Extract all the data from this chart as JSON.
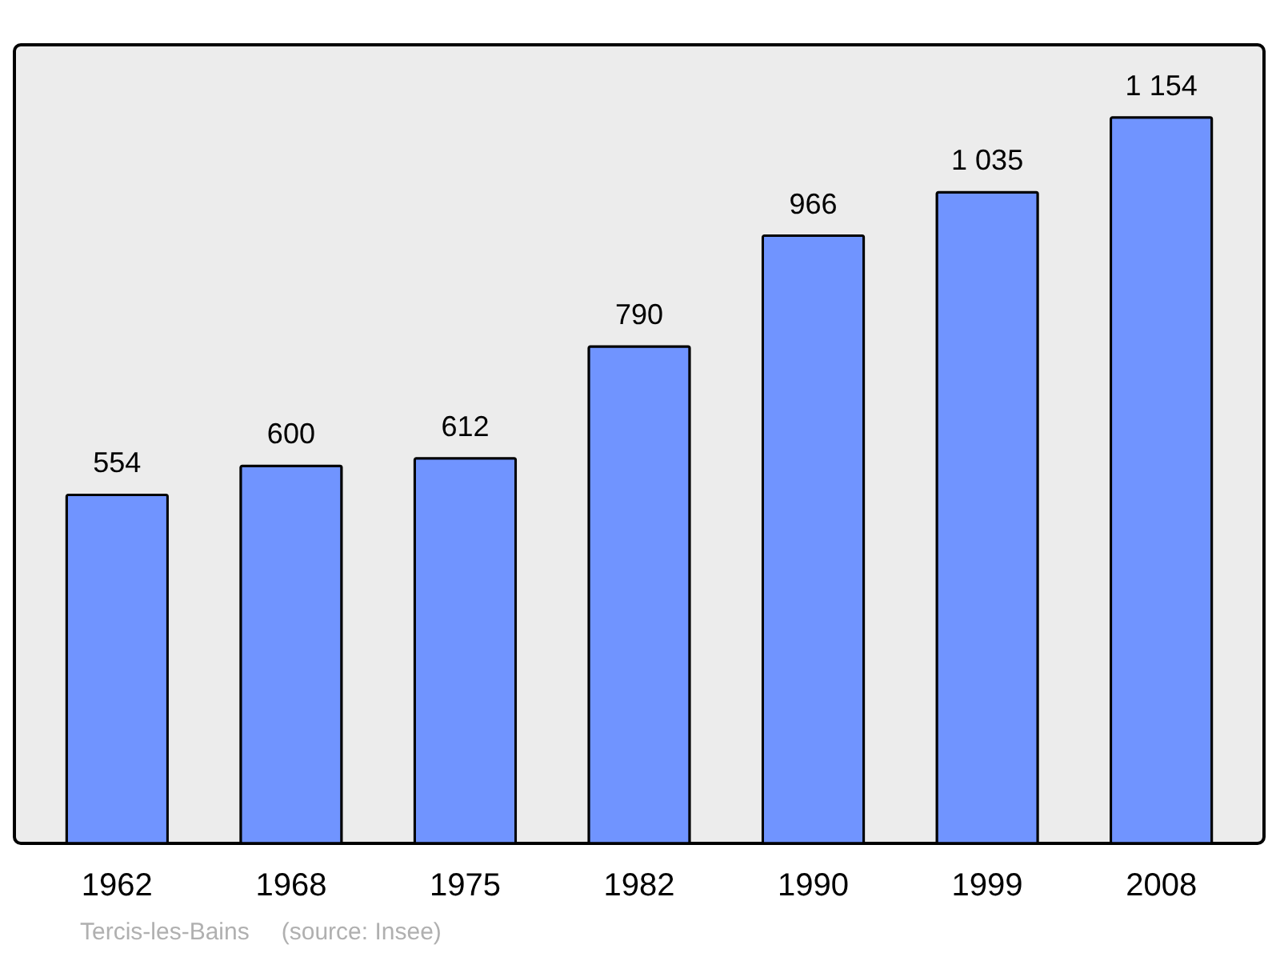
{
  "chart_data": {
    "type": "bar",
    "categories": [
      "1962",
      "1968",
      "1975",
      "1982",
      "1990",
      "1999",
      "2008"
    ],
    "values": [
      554,
      600,
      612,
      790,
      966,
      1035,
      1154
    ],
    "value_labels": [
      "554",
      "600",
      "612",
      "790",
      "966",
      "1 035",
      "1 154"
    ],
    "color": "#7094ff",
    "annotations": [
      "Tercis-les-Bains",
      "(source: Insee)"
    ]
  }
}
